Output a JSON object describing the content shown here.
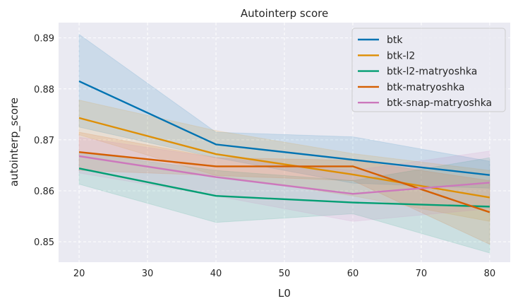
{
  "chart_data": {
    "type": "line",
    "title": "Autointerp score",
    "xlabel": "L0",
    "ylabel": "autointerp_score",
    "x": [
      20,
      40,
      60,
      80
    ],
    "xlim": [
      17,
      83
    ],
    "ylim": [
      0.846,
      0.893
    ],
    "xticks": [
      20,
      30,
      40,
      50,
      60,
      70,
      80
    ],
    "yticks": [
      0.85,
      0.86,
      0.87,
      0.88,
      0.89
    ],
    "ytick_labels": [
      "0.85",
      "0.86",
      "0.87",
      "0.88",
      "0.89"
    ],
    "grid": true,
    "legend_position": "top-right",
    "series": [
      {
        "name": "btk",
        "color": "#0173b2",
        "values": [
          0.8815,
          0.8691,
          0.8661,
          0.8631
        ],
        "lower": [
          0.8725,
          0.8665,
          0.8615,
          0.8605
        ],
        "upper": [
          0.8907,
          0.8715,
          0.8706,
          0.8658
        ]
      },
      {
        "name": "btk-l2",
        "color": "#de8f05",
        "values": [
          0.8743,
          0.8672,
          0.8632,
          0.8587
        ],
        "lower": [
          0.871,
          0.863,
          0.859,
          0.854
        ],
        "upper": [
          0.8778,
          0.8718,
          0.8673,
          0.864
        ]
      },
      {
        "name": "btk-l2-matryoshka",
        "color": "#029e73",
        "values": [
          0.8644,
          0.859,
          0.8577,
          0.8569
        ],
        "lower": [
          0.8613,
          0.8538,
          0.8555,
          0.8478
        ],
        "upper": [
          0.8676,
          0.864,
          0.862,
          0.8665
        ]
      },
      {
        "name": "btk-matryoshka",
        "color": "#d55e00",
        "values": [
          0.8676,
          0.8648,
          0.8648,
          0.8558
        ],
        "lower": [
          0.864,
          0.863,
          0.862,
          0.8495
        ],
        "upper": [
          0.8715,
          0.8665,
          0.866,
          0.862
        ]
      },
      {
        "name": "btk-snap-matryoshka",
        "color": "#cc78bc",
        "values": [
          0.8668,
          0.8627,
          0.8594,
          0.8616
        ],
        "lower": [
          0.8635,
          0.859,
          0.854,
          0.8565
        ],
        "upper": [
          0.8705,
          0.8665,
          0.864,
          0.8678
        ]
      }
    ]
  }
}
